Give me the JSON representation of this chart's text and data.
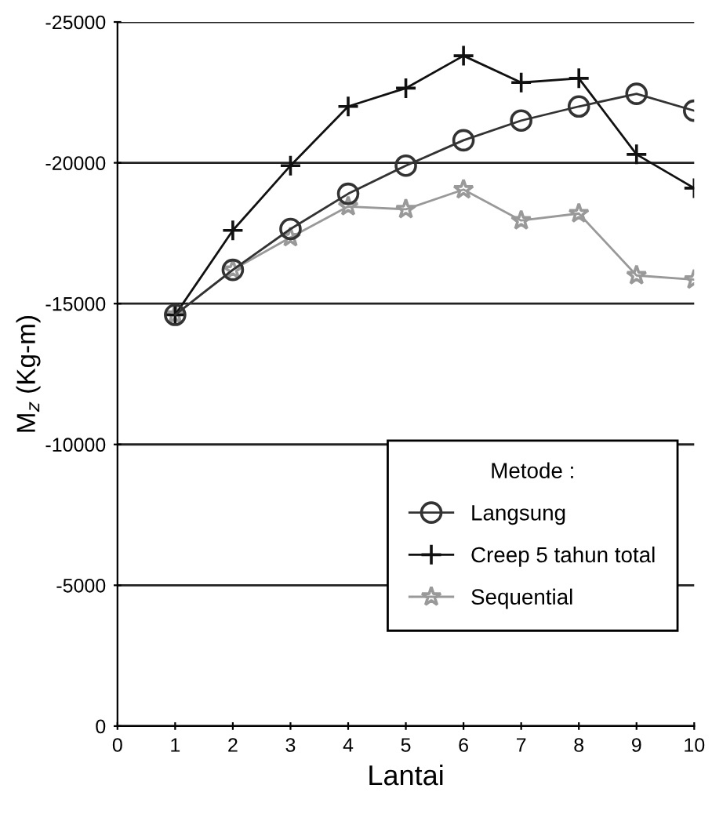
{
  "chart_data": {
    "type": "line",
    "xlabel": "Lantai",
    "ylabel": "M$_{z}$ (Kg-m)",
    "legend_title": "Metode :",
    "legend": "bottom right",
    "x": [
      1,
      2,
      3,
      4,
      5,
      6,
      7,
      8,
      9,
      10
    ],
    "xlim": [
      0,
      10
    ],
    "xticks": [
      0,
      1,
      2,
      3,
      4,
      5,
      6,
      7,
      8,
      9,
      10
    ],
    "ylim": [
      0,
      -25000
    ],
    "yticks": [
      0,
      -5000,
      -10000,
      -15000,
      -20000,
      -25000
    ],
    "grid": "y",
    "series": [
      {
        "name": "Langsung",
        "color": "#333333",
        "marker": "circle",
        "values": [
          -14600,
          -16200,
          -17650,
          -18900,
          -19900,
          -20800,
          -21500,
          -22000,
          -22450,
          -21850
        ]
      },
      {
        "name": "Creep 5 tahun total",
        "color": "#111111",
        "marker": "cross",
        "values": [
          -14600,
          -17600,
          -19900,
          -22000,
          -22650,
          -23800,
          -22850,
          -23000,
          -20300,
          -19100
        ]
      },
      {
        "name": "Sequential",
        "color": "#999999",
        "marker": "star",
        "values": [
          -14600,
          -16200,
          -17350,
          -18450,
          -18350,
          -19050,
          -17950,
          -18200,
          -16000,
          -15850
        ]
      }
    ]
  }
}
